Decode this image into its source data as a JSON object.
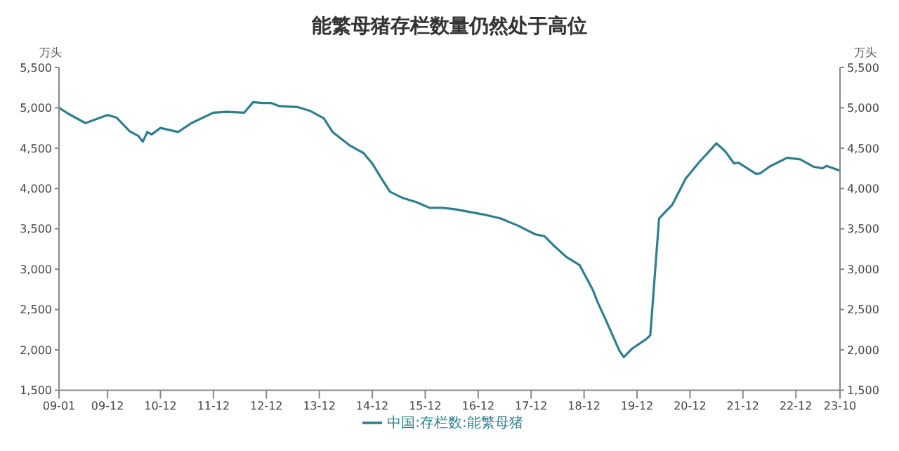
{
  "chart_data": {
    "type": "line",
    "title": "能繁母猪存栏数量仍然处于高位",
    "ylabel": "万头",
    "y2label": "万头",
    "x": [
      "2009-01",
      "2009-03",
      "2009-07",
      "2009-10",
      "2009-12",
      "2010-02",
      "2010-05",
      "2010-07",
      "2010-08",
      "2010-09",
      "2010-10",
      "2010-12",
      "2011-04",
      "2011-07",
      "2011-12",
      "2012-03",
      "2012-07",
      "2012-09",
      "2012-11",
      "2013-01",
      "2013-03",
      "2013-07",
      "2013-10",
      "2014-01",
      "2014-03",
      "2014-07",
      "2014-10",
      "2014-12",
      "2015-02",
      "2015-04",
      "2015-07",
      "2015-10",
      "2016-01",
      "2016-04",
      "2016-07",
      "2017-01",
      "2017-05",
      "2017-09",
      "2018-01",
      "2018-03",
      "2018-05",
      "2018-08",
      "2018-11",
      "2019-02",
      "2019-03",
      "2019-05",
      "2019-08",
      "2019-09",
      "2019-11",
      "2020-02",
      "2020-03",
      "2020-05",
      "2020-08",
      "2020-11",
      "2021-02",
      "2021-06",
      "2021-08",
      "2021-10",
      "2021-11",
      "2022-01",
      "2022-03",
      "2022-04",
      "2022-06",
      "2022-10",
      "2023-01",
      "2023-04",
      "2023-06",
      "2023-07",
      "2023-10"
    ],
    "series": [
      {
        "name": "中国:存栏数:能繁母猪",
        "color": "#2e7f8e",
        "values": [
          5000,
          4930,
          4810,
          4870,
          4910,
          4880,
          4710,
          4650,
          4580,
          4700,
          4670,
          4750,
          4700,
          4810,
          4940,
          4950,
          4940,
          5070,
          5060,
          5060,
          5020,
          5010,
          4960,
          4870,
          4700,
          4530,
          4440,
          4310,
          4130,
          3960,
          3880,
          3830,
          3760,
          3760,
          3740,
          3680,
          3630,
          3540,
          3430,
          3410,
          3300,
          3150,
          3050,
          2740,
          2600,
          2360,
          1990,
          1910,
          2020,
          2130,
          2180,
          3630,
          3800,
          4120,
          4320,
          4560,
          4460,
          4310,
          4320,
          4250,
          4180,
          4190,
          4270,
          4380,
          4360,
          4270,
          4250,
          4280,
          4220
        ]
      }
    ],
    "xlim": [
      "2009-01",
      "2023-10"
    ],
    "xticks": [
      {
        "value": "2009-01",
        "label": "09-01"
      },
      {
        "value": "2009-12",
        "label": "09-12"
      },
      {
        "value": "2010-12",
        "label": "10-12"
      },
      {
        "value": "2011-12",
        "label": "11-12"
      },
      {
        "value": "2012-12",
        "label": "12-12"
      },
      {
        "value": "2013-12",
        "label": "13-12"
      },
      {
        "value": "2014-12",
        "label": "14-12"
      },
      {
        "value": "2015-12",
        "label": "15-12"
      },
      {
        "value": "2016-12",
        "label": "16-12"
      },
      {
        "value": "2017-12",
        "label": "17-12"
      },
      {
        "value": "2018-12",
        "label": "18-12"
      },
      {
        "value": "2019-12",
        "label": "19-12"
      },
      {
        "value": "2020-12",
        "label": "20-12"
      },
      {
        "value": "2021-12",
        "label": "21-12"
      },
      {
        "value": "2022-12",
        "label": "22-12"
      },
      {
        "value": "2023-10",
        "label": "23-10"
      }
    ],
    "ylim": [
      1500,
      5500
    ],
    "yticks": [
      {
        "value": 1500,
        "label": "1,500"
      },
      {
        "value": 2000,
        "label": "2,000"
      },
      {
        "value": 2500,
        "label": "2,500"
      },
      {
        "value": 3000,
        "label": "3,000"
      },
      {
        "value": 3500,
        "label": "3,500"
      },
      {
        "value": 4000,
        "label": "4,000"
      },
      {
        "value": 4500,
        "label": "4,500"
      },
      {
        "value": 5000,
        "label": "5,000"
      },
      {
        "value": 5500,
        "label": "5,500"
      }
    ],
    "y2lim": [
      1500,
      5500
    ],
    "y2ticks": [
      {
        "value": 1500,
        "label": "1,500"
      },
      {
        "value": 2000,
        "label": "2,000"
      },
      {
        "value": 2500,
        "label": "2,500"
      },
      {
        "value": 3000,
        "label": "3,000"
      },
      {
        "value": 3500,
        "label": "3,500"
      },
      {
        "value": 4000,
        "label": "4,000"
      },
      {
        "value": 4500,
        "label": "4,500"
      },
      {
        "value": 5000,
        "label": "5,000"
      },
      {
        "value": 5500,
        "label": "5,500"
      }
    ],
    "grid": false,
    "legend": "bottom",
    "marker": "none",
    "line_style": "solid"
  }
}
